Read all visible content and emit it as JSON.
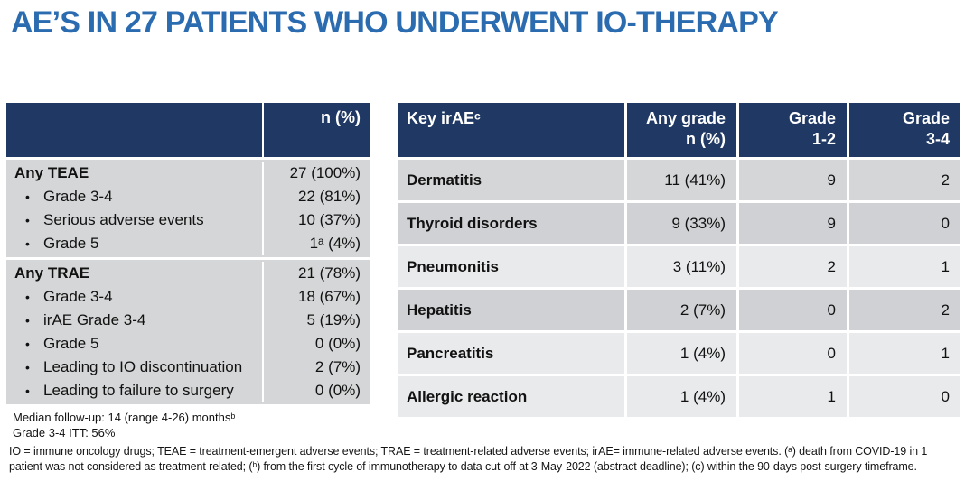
{
  "title": "AE’S IN 27 PATIENTS WHO UNDERWENT IO-THERAPY",
  "bullet_char": "•",
  "colors": {
    "title_blue": "#2b6cb0",
    "header_navy": "#1f3864",
    "header_text": "#ffffff",
    "row_gray": "#d5d6d7",
    "row_mid_gray": "#cfd1d4",
    "row_light_gray": "#e9eaeb"
  },
  "left_table": {
    "header_value": "n (%)",
    "sections": [
      {
        "rows": [
          {
            "label": "Any TEAE",
            "bold": true,
            "bullet": false,
            "value": "27 (100%)"
          },
          {
            "label": "Grade 3-4",
            "bold": false,
            "bullet": true,
            "value": "22 (81%)"
          },
          {
            "label": "Serious adverse events",
            "bold": false,
            "bullet": true,
            "value": "10 (37%)"
          },
          {
            "label": "Grade 5",
            "bold": false,
            "bullet": true,
            "value": "1ᵃ (4%)"
          }
        ]
      },
      {
        "rows": [
          {
            "label": "Any TRAE",
            "bold": true,
            "bullet": false,
            "value": "21 (78%)"
          },
          {
            "label": "Grade 3-4",
            "bold": false,
            "bullet": true,
            "value": "18 (67%)"
          },
          {
            "label": "irAE Grade 3-4",
            "bold": false,
            "bullet": true,
            "value": "5 (19%)"
          },
          {
            "label": "Grade 5",
            "bold": false,
            "bullet": true,
            "value": "0 (0%)"
          },
          {
            "label": "Leading to IO discontinuation",
            "bold": false,
            "bullet": true,
            "value": "2 (7%)"
          },
          {
            "label": "Leading to failure to surgery",
            "bold": false,
            "bullet": true,
            "value": "0 (0%)"
          }
        ]
      }
    ],
    "notes": [
      "Median follow-up: 14 (range 4-26) monthsᵇ",
      "Grade 3-4 ITT: 56%"
    ]
  },
  "right_table": {
    "headers": [
      "Key irAEᶜ",
      "Any grade\nn (%)",
      "Grade\n1-2",
      "Grade\n3-4"
    ],
    "rows": [
      {
        "name": "Dermatitis",
        "any_grade": "11 (41%)",
        "grade12": "9",
        "grade34": "2",
        "shade": "gray"
      },
      {
        "name": "Thyroid disorders",
        "any_grade": "9 (33%)",
        "grade12": "9",
        "grade34": "0",
        "shade": "mid"
      },
      {
        "name": "Pneumonitis",
        "any_grade": "3 (11%)",
        "grade12": "2",
        "grade34": "1",
        "shade": "light"
      },
      {
        "name": "Hepatitis",
        "any_grade": "2 (7%)",
        "grade12": "0",
        "grade34": "2",
        "shade": "mid"
      },
      {
        "name": "Pancreatitis",
        "any_grade": "1 (4%)",
        "grade12": "0",
        "grade34": "1",
        "shade": "light"
      },
      {
        "name": "Allergic reaction",
        "any_grade": "1 (4%)",
        "grade12": "1",
        "grade34": "0",
        "shade": "light"
      }
    ]
  },
  "footnote": "IO = immune oncology drugs; TEAE = treatment-emergent adverse events; TRAE = treatment-related adverse events; irAE= immune-related adverse events. (ᵃ) death from COVID-19 in 1 patient was not considered as treatment related; (ᵇ) from the first cycle of immunotherapy to data cut-off at 3-May-2022 (abstract deadline); (c) within the 90-days post-surgery timeframe."
}
